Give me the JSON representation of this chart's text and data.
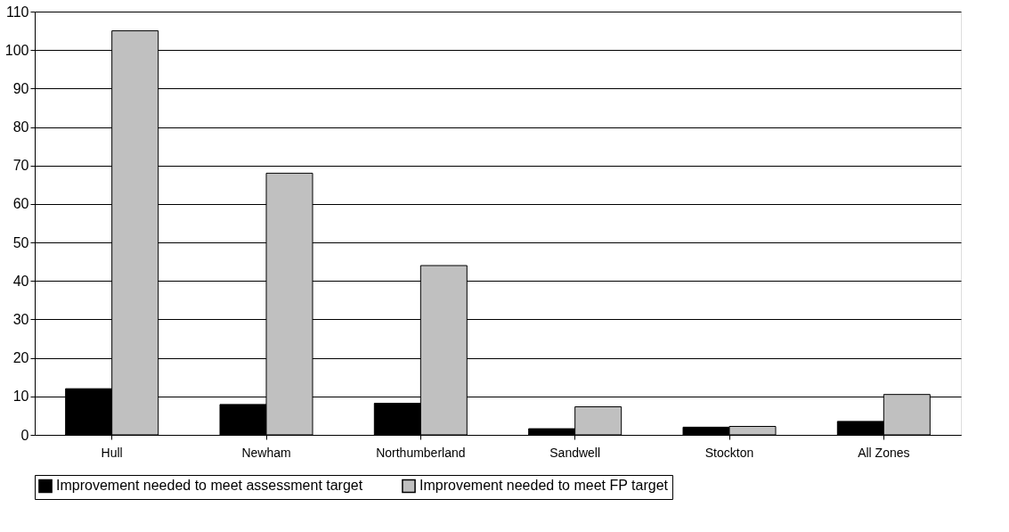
{
  "chart_data": {
    "type": "bar",
    "categories": [
      "Hull",
      "Newham",
      "Northumberland",
      "Sandwell",
      "Stockton",
      "All Zones"
    ],
    "series": [
      {
        "name": "Improvement needed to meet assessment target",
        "color": "#000000",
        "values": [
          12.0,
          7.9,
          8.2,
          1.6,
          2.0,
          3.5
        ]
      },
      {
        "name": "Improvement needed to meet FP target",
        "color": "#c0c0c0",
        "values": [
          105,
          68,
          44,
          7.3,
          2.2,
          10.5
        ]
      }
    ],
    "ylim": [
      0,
      110
    ],
    "yticks": [
      0,
      10,
      20,
      30,
      40,
      50,
      60,
      70,
      80,
      90,
      100,
      110
    ],
    "grid": "y",
    "legend": "bottom"
  }
}
